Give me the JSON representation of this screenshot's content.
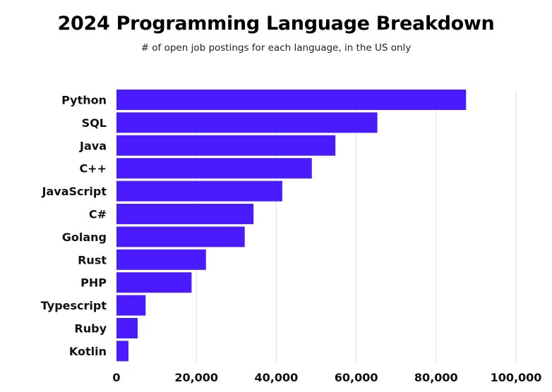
{
  "chart_data": {
    "type": "bar",
    "orientation": "horizontal",
    "title": "2024 Programming Language Breakdown",
    "subtitle": "# of open job postings for each language, in the US only",
    "xlabel": "",
    "ylabel": "",
    "categories": [
      "Python",
      "SQL",
      "Java",
      "C++",
      "JavaScript",
      "C#",
      "Golang",
      "Rust",
      "PHP",
      "Typescript",
      "Ruby",
      "Kotlin"
    ],
    "values": [
      87500,
      65300,
      54800,
      48900,
      41500,
      34300,
      32100,
      22400,
      18800,
      7300,
      5300,
      3000
    ],
    "xlim": [
      0,
      100000
    ],
    "xticks": [
      0,
      20000,
      40000,
      60000,
      80000,
      100000
    ],
    "xtick_labels": [
      "0",
      "20,000",
      "40,000",
      "60,000",
      "80,000",
      "100,000"
    ],
    "grid": "vertical",
    "legend": "none",
    "bar_color": "#4b1bff",
    "grid_color": "#e0e0e0"
  }
}
